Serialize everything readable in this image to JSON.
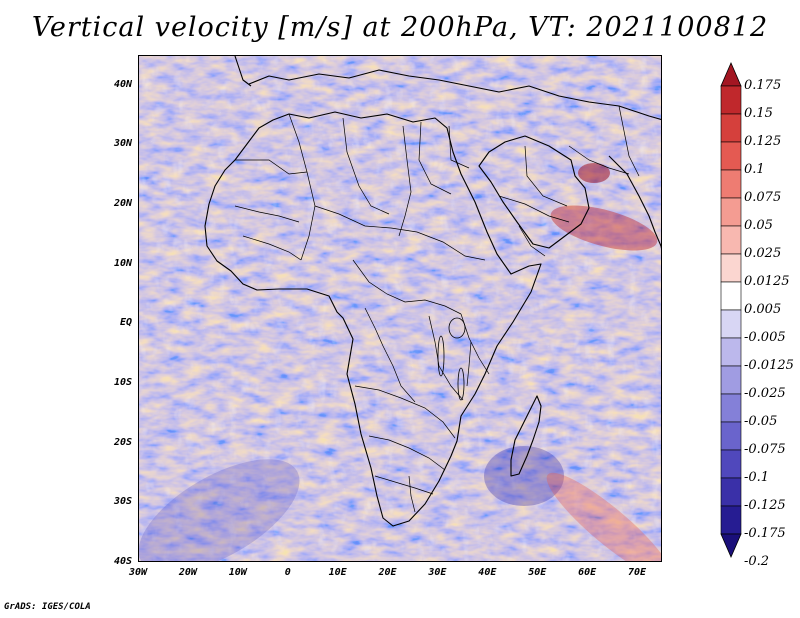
{
  "title": "Vertical velocity [m/s] at 200hPa, VT: 2021100812",
  "credit": "GrADS: IGES/COLA",
  "map": {
    "lon_range": [
      -30,
      75
    ],
    "lat_range": [
      -40,
      45
    ],
    "lat_ticks": [
      {
        "value": 40,
        "label": "40N"
      },
      {
        "value": 30,
        "label": "30N"
      },
      {
        "value": 20,
        "label": "20N"
      },
      {
        "value": 10,
        "label": "10N"
      },
      {
        "value": 0,
        "label": "EQ"
      },
      {
        "value": -10,
        "label": "10S"
      },
      {
        "value": -20,
        "label": "20S"
      },
      {
        "value": -30,
        "label": "30S"
      },
      {
        "value": -40,
        "label": "40S"
      }
    ],
    "lon_ticks": [
      {
        "value": -30,
        "label": "30W"
      },
      {
        "value": -20,
        "label": "20W"
      },
      {
        "value": -10,
        "label": "10W"
      },
      {
        "value": 0,
        "label": "0"
      },
      {
        "value": 10,
        "label": "10E"
      },
      {
        "value": 20,
        "label": "20E"
      },
      {
        "value": 30,
        "label": "30E"
      },
      {
        "value": 40,
        "label": "40E"
      },
      {
        "value": 50,
        "label": "50E"
      },
      {
        "value": 60,
        "label": "60E"
      },
      {
        "value": 70,
        "label": "70E"
      }
    ]
  },
  "colorbar": {
    "labels": [
      "0.175",
      "0.15",
      "0.125",
      "0.1",
      "0.075",
      "0.05",
      "0.025",
      "0.0125",
      "0.005",
      "-0.005",
      "-0.0125",
      "-0.025",
      "-0.05",
      "-0.075",
      "-0.1",
      "-0.125",
      "-0.175",
      "-0.2"
    ],
    "colors": [
      "#a31622",
      "#c0282c",
      "#d5403c",
      "#e45a52",
      "#ee7c72",
      "#f49c92",
      "#f8b8b0",
      "#fbd6d0",
      "#ffffff",
      "#d8d6f4",
      "#bcb8ec",
      "#a09ce2",
      "#8480d8",
      "#6a64cc",
      "#5048bc",
      "#3a30a8",
      "#261c92",
      "#1a0f7a"
    ]
  }
}
